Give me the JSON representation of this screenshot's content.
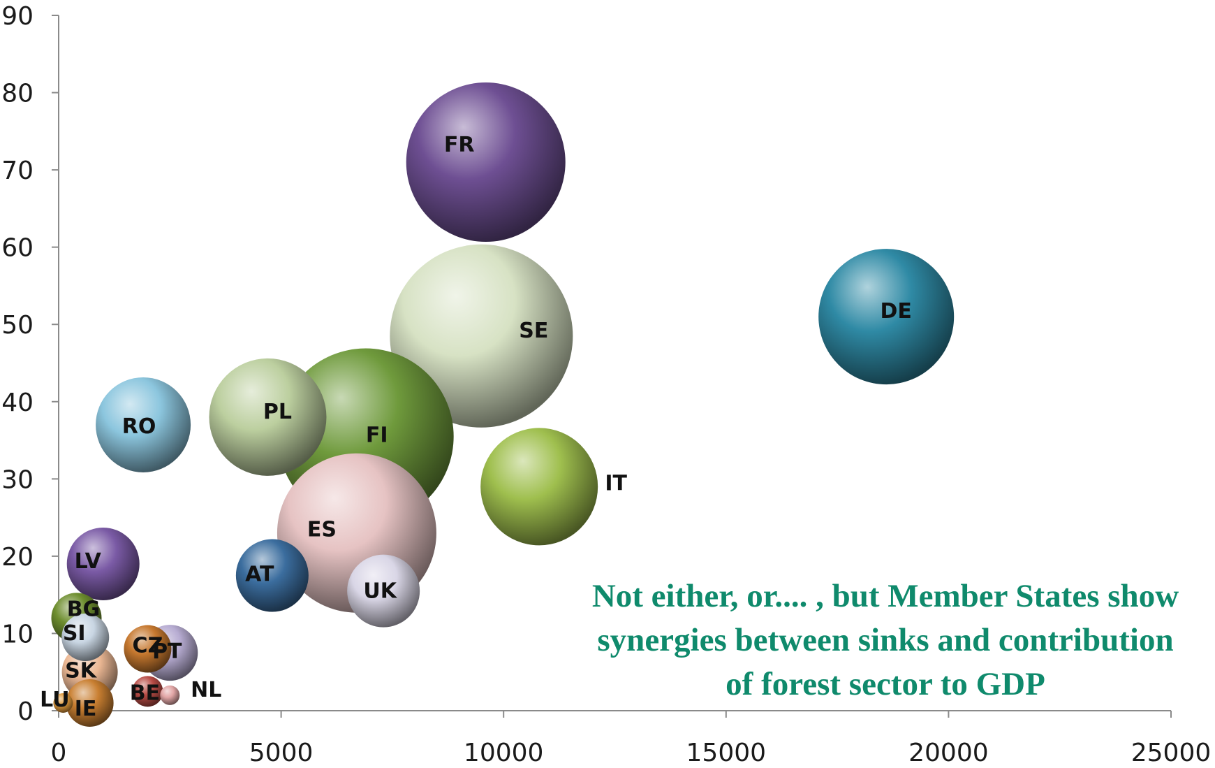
{
  "chart_data": {
    "type": "bubble",
    "title": "",
    "xlabel": "",
    "ylabel": "",
    "xlim": [
      0,
      25000
    ],
    "ylim": [
      0,
      90
    ],
    "x_ticks": [
      "0",
      "5000",
      "10000",
      "15000",
      "20000",
      "25000"
    ],
    "y_ticks": [
      "0",
      "10",
      "20",
      "30",
      "40",
      "50",
      "60",
      "70",
      "80",
      "90"
    ],
    "grid": false,
    "legend": "none",
    "annotation": [
      "Not either, or.... , but Member States show",
      "synergies between sinks and contribution",
      "of forest sector to GDP"
    ],
    "points": [
      {
        "label": "FR",
        "x": 9600,
        "y": 71,
        "size": 114,
        "color": "#6e4f93"
      },
      {
        "label": "DE",
        "x": 18600,
        "y": 51,
        "size": 97,
        "color": "#2f8aa5"
      },
      {
        "label": "SE",
        "x": 9500,
        "y": 48.5,
        "size": 131,
        "color": "#d7e2c4"
      },
      {
        "label": "FI",
        "x": 6900,
        "y": 35.5,
        "size": 126,
        "color": "#6f9a3c"
      },
      {
        "label": "PL",
        "x": 4700,
        "y": 38,
        "size": 84,
        "color": "#bccf9f"
      },
      {
        "label": "RO",
        "x": 1900,
        "y": 37,
        "size": 68,
        "color": "#8cc6de"
      },
      {
        "label": "IT",
        "x": 10800,
        "y": 29,
        "size": 84,
        "color": "#9fbf4e"
      },
      {
        "label": "ES",
        "x": 6700,
        "y": 23,
        "size": 114,
        "color": "#e6c3c3"
      },
      {
        "label": "UK",
        "x": 7300,
        "y": 15.5,
        "size": 52,
        "color": "#d9d6e6"
      },
      {
        "label": "AT",
        "x": 4800,
        "y": 17.5,
        "size": 52,
        "color": "#3b6d9e"
      },
      {
        "label": "LV",
        "x": 1000,
        "y": 19,
        "size": 52,
        "color": "#7a5aa5"
      },
      {
        "label": "BG",
        "x": 400,
        "y": 12,
        "size": 36,
        "color": "#6e8e2f"
      },
      {
        "label": "CZ",
        "x": 2000,
        "y": 8,
        "size": 34,
        "color": "#c6782f"
      },
      {
        "label": "PT",
        "x": 2500,
        "y": 7.5,
        "size": 40,
        "color": "#b7acd2"
      },
      {
        "label": "SI",
        "x": 600,
        "y": 9.5,
        "size": 34,
        "color": "#c9d6e3"
      },
      {
        "label": "SK",
        "x": 700,
        "y": 5,
        "size": 40,
        "color": "#ecb894"
      },
      {
        "label": "BE",
        "x": 2000,
        "y": 2.5,
        "size": 22,
        "color": "#b84b45"
      },
      {
        "label": "NL",
        "x": 2500,
        "y": 2,
        "size": 14,
        "color": "#e2a6a6"
      },
      {
        "label": "LU",
        "x": 100,
        "y": 1,
        "size": 14,
        "color": "#e19a3b"
      },
      {
        "label": "IE",
        "x": 700,
        "y": 1,
        "size": 34,
        "color": "#c97f31"
      }
    ]
  }
}
